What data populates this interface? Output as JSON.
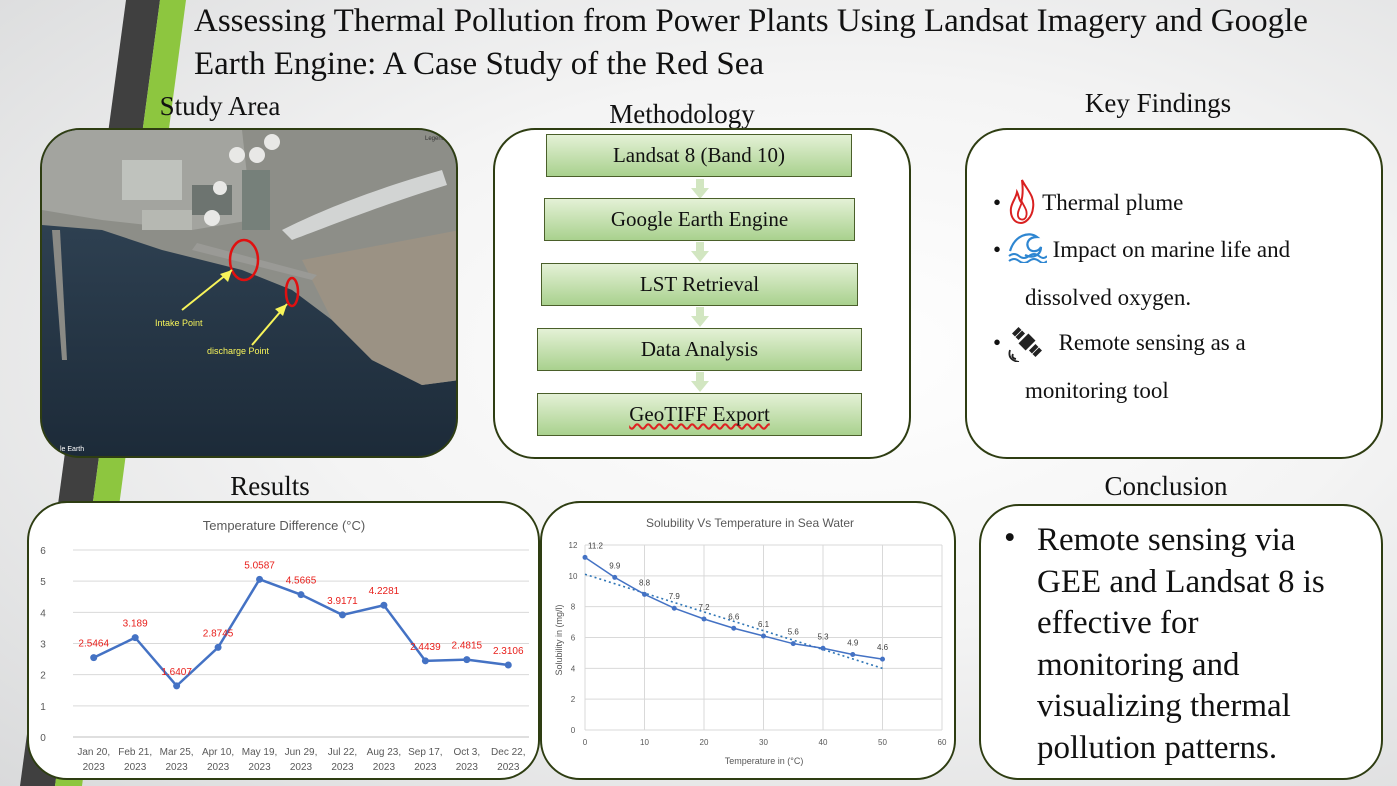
{
  "title": "Assessing Thermal Pollution from Power Plants Using Landsat Imagery and Google Earth Engine: A Case Study of the Red Sea",
  "sections": {
    "study_area": "Study Area",
    "methodology": "Methodology",
    "key_findings": "Key Findings",
    "results": "Results",
    "conclusion": "Conclusion"
  },
  "map": {
    "intake_label": "Intake Point",
    "discharge_label": "discharge Point",
    "legend_label": "Legend",
    "corner_label": "le Earth"
  },
  "methodology_steps": [
    "Landsat 8 (Band 10)",
    "Google Earth Engine",
    "LST Retrieval",
    "Data Analysis",
    "GeoTIFF Export"
  ],
  "findings": [
    {
      "icon": "flame-icon",
      "text": "Thermal plume"
    },
    {
      "icon": "wave-icon",
      "text": "Impact on marine life and",
      "cont": "dissolved oxygen."
    },
    {
      "icon": "satellite-icon",
      "text": "Remote sensing as a",
      "cont": "monitoring tool"
    }
  ],
  "conclusion": {
    "bullet": "•",
    "lines": [
      "Remote sensing via",
      "GEE and Landsat 8 is",
      "effective for",
      "monitoring and",
      "visualizing thermal",
      "pollution patterns."
    ]
  },
  "chart_data": [
    {
      "type": "line",
      "title": "Temperature Difference (°C)",
      "categories": [
        [
          "Jan 20,",
          "2023"
        ],
        [
          "Feb 21,",
          "2023"
        ],
        [
          "Mar 25,",
          "2023"
        ],
        [
          "Apr 10,",
          "2023"
        ],
        [
          "May 19,",
          "2023"
        ],
        [
          "Jun 29,",
          "2023"
        ],
        [
          "Jul 22,",
          "2023"
        ],
        [
          "Aug 23,",
          "2023"
        ],
        [
          "Sep 17,",
          "2023"
        ],
        [
          "Oct 3,",
          "2023"
        ],
        [
          "Dec 22,",
          "2023"
        ]
      ],
      "values": [
        2.5464,
        3.189,
        1.6407,
        2.8745,
        5.0587,
        4.5665,
        3.9171,
        4.2281,
        2.4439,
        2.4815,
        2.3106
      ],
      "labels": [
        "2.5464",
        "3.189",
        "1.6407",
        "2.8745",
        "5.0587",
        "4.5665",
        "3.9171",
        "4.2281",
        "2.4439",
        "2.4815",
        "2.3106"
      ],
      "ylim": [
        0,
        6
      ],
      "yticks": [
        "0",
        "1",
        "2",
        "3",
        "4",
        "5",
        "6"
      ],
      "grid": true,
      "line_color": "#4472c4",
      "label_color": "#e8201c"
    },
    {
      "type": "scatter",
      "title": "Solubility Vs Temperature in Sea Water",
      "xlabel": "Temperature in (°C)",
      "ylabel": "Solubility in (mg/l)",
      "x": [
        0,
        5,
        10,
        15,
        20,
        25,
        30,
        35,
        40,
        45,
        50
      ],
      "y": [
        11.2,
        9.9,
        8.8,
        7.9,
        7.2,
        6.6,
        6.1,
        5.6,
        5.3,
        4.9,
        4.6
      ],
      "labels": [
        "11.2",
        "9.9",
        "8.8",
        "7.9",
        "7.2",
        "6.6",
        "6.1",
        "5.6",
        "5.3",
        "4.9",
        "4.6"
      ],
      "xlim": [
        0,
        60
      ],
      "ylim": [
        0,
        12
      ],
      "xticks": [
        "0",
        "10",
        "20",
        "30",
        "40",
        "50",
        "60"
      ],
      "yticks": [
        "0",
        "2",
        "4",
        "6",
        "8",
        "10",
        "12"
      ],
      "trendline": "linear dotted",
      "trend_start": 10.1,
      "trend_end": 4.0,
      "grid": true,
      "line_color": "#4472c4"
    }
  ]
}
